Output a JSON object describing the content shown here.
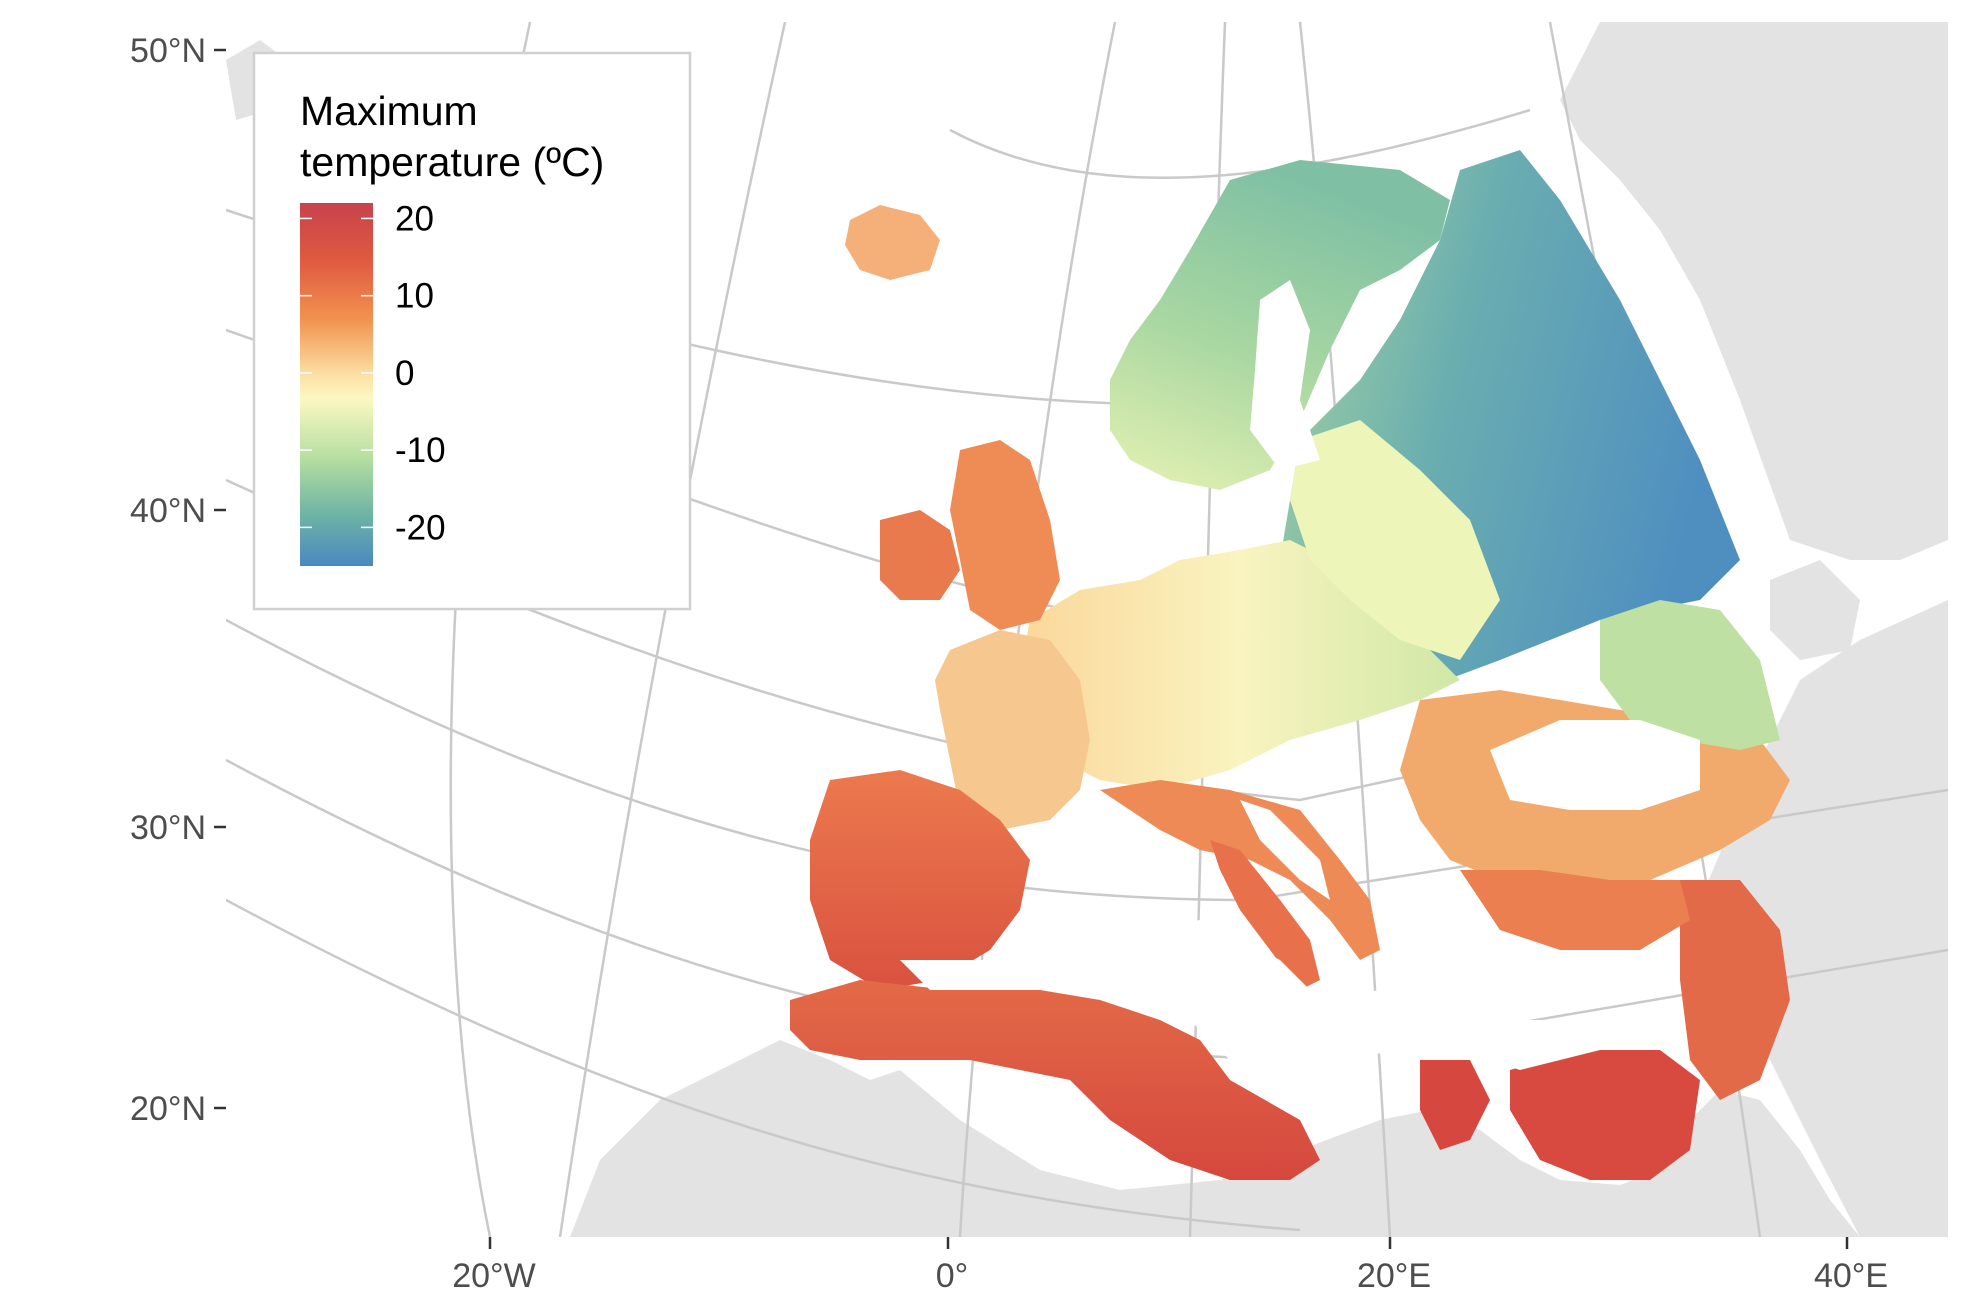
{
  "legend": {
    "title_line1": "Maximum",
    "title_line2": "temperature (ºC)",
    "ticks": [
      {
        "value": 20,
        "label": "20"
      },
      {
        "value": 10,
        "label": "10"
      },
      {
        "value": 0,
        "label": "0"
      },
      {
        "value": -10,
        "label": "-10"
      },
      {
        "value": -20,
        "label": "-20"
      }
    ],
    "range": [
      -25,
      22
    ],
    "palette": [
      "#d53e4f",
      "#f46d43",
      "#fdae61",
      "#fee08b",
      "#ffffbf",
      "#e6f598",
      "#abdda4",
      "#66c2a5",
      "#3288bd"
    ]
  },
  "axes": {
    "lat_labels": [
      "50°N",
      "40°N",
      "30°N",
      "20°N"
    ],
    "lon_labels": [
      "20°W",
      "0°",
      "20°E",
      "40°E"
    ]
  },
  "colors": {
    "land_background": "#e3e3e3",
    "graticule": "#c9c9c9",
    "sea": "#ffffff"
  }
}
